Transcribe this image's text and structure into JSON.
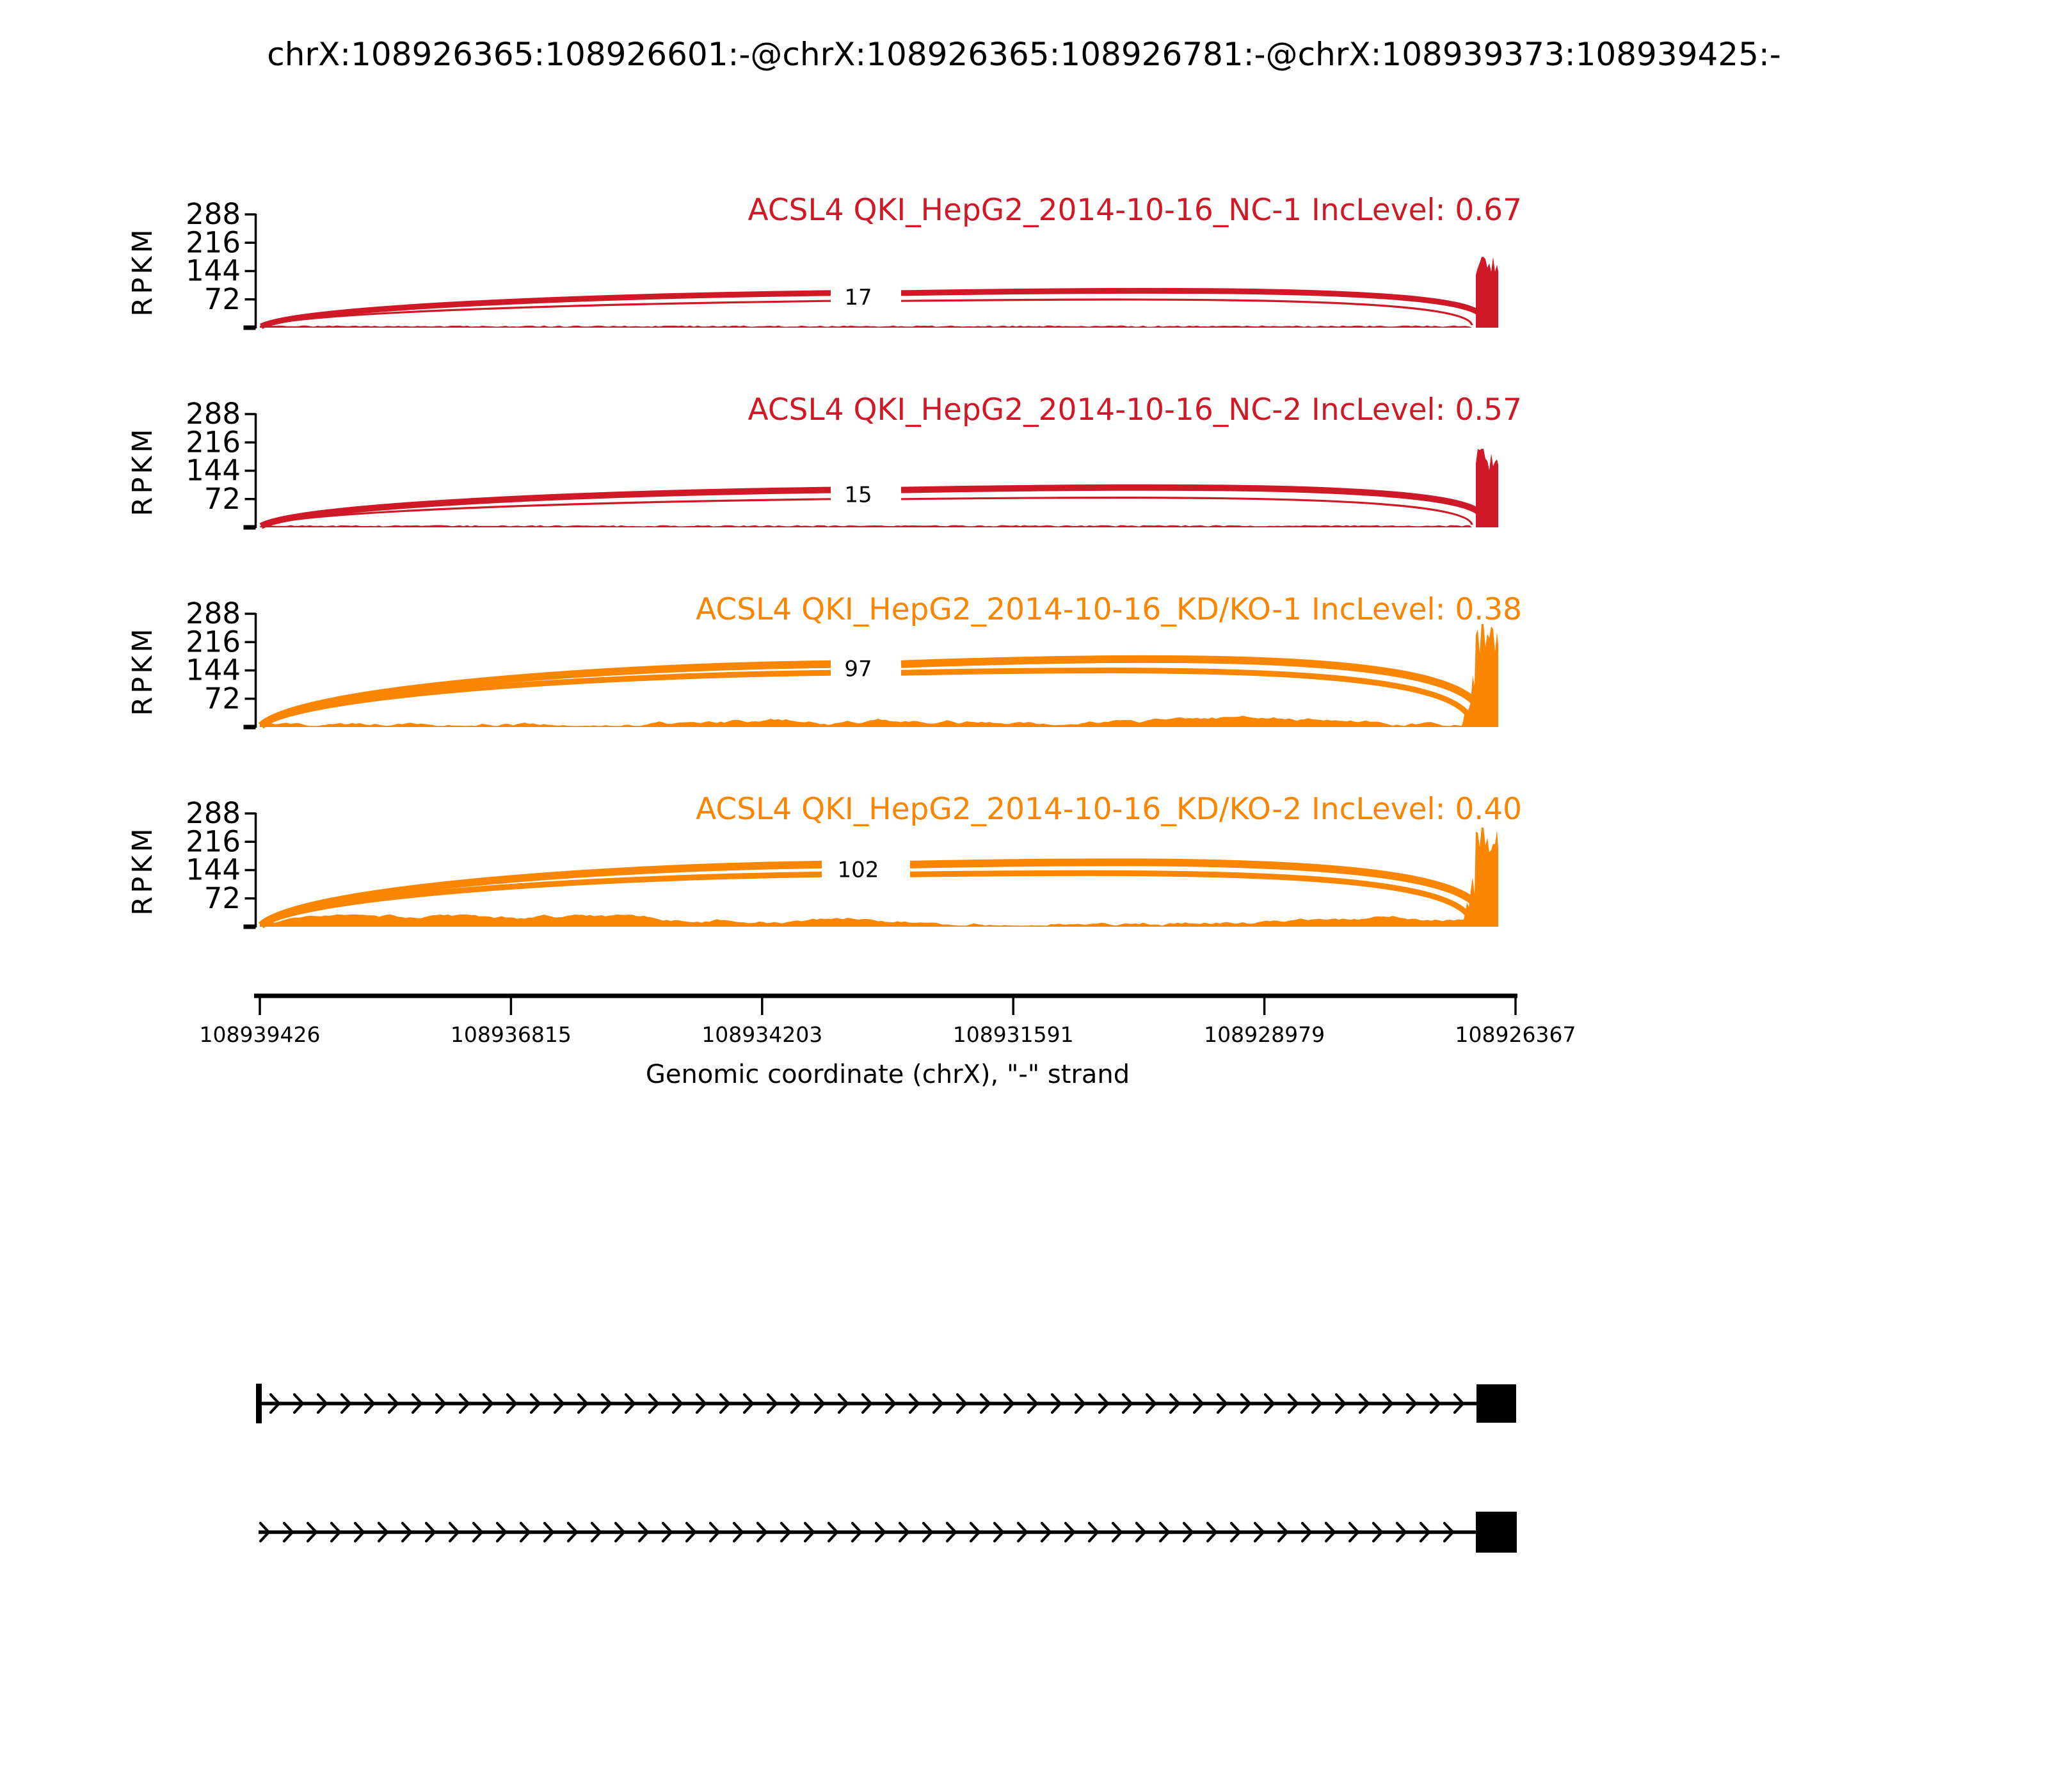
{
  "chart_data": {
    "type": "area",
    "title": "chrX:108926365:108926601:-@chrX:108926365:108926781:-@chrX:108939373:108939425:-",
    "ylabel": "RPKM",
    "yticks": [
      288,
      216,
      144,
      72
    ],
    "ylim": [
      0,
      300
    ],
    "xlabel": "Genomic coordinate (chrX), \"-\" strand",
    "xticks": [
      "108939426",
      "108936815",
      "108934203",
      "108931591",
      "108928979",
      "108926367"
    ],
    "x_descending": true,
    "grid": false,
    "tracks": [
      {
        "name": "NC-1",
        "label": "ACSL4 QKI_HepG2_2014-10-16_NC-1 IncLevel: 0.67",
        "inc_level": 0.67,
        "color": "#D01926",
        "junction_reads": 17,
        "arc_upper": {
          "gap_rpkm": 88,
          "apex_rpkm": 100,
          "width": 9
        },
        "arc_lower": {
          "gap_rpkm": 68,
          "apex_rpkm": 76,
          "width": 3.2
        },
        "peak_rpkm": 180,
        "coverage_base_rpkm": 4,
        "coverage_noise_rpkm": 4
      },
      {
        "name": "NC-2",
        "label": "ACSL4 QKI_HepG2_2014-10-16_NC-2 IncLevel: 0.57",
        "inc_level": 0.57,
        "color": "#D01926",
        "junction_reads": 15,
        "arc_upper": {
          "gap_rpkm": 95,
          "apex_rpkm": 108,
          "width": 10
        },
        "arc_lower": {
          "gap_rpkm": 72,
          "apex_rpkm": 80,
          "width": 3.2
        },
        "peak_rpkm": 200,
        "coverage_base_rpkm": 4,
        "coverage_noise_rpkm": 4
      },
      {
        "name": "KD/KO-1",
        "label": "ACSL4 QKI_HepG2_2014-10-16_KD/KO-1 IncLevel: 0.38",
        "inc_level": 0.38,
        "color": "#F98500",
        "junction_reads": 97,
        "arc_upper": {
          "gap_rpkm": 160,
          "apex_rpkm": 186,
          "width": 12
        },
        "arc_lower": {
          "gap_rpkm": 138,
          "apex_rpkm": 152,
          "width": 9
        },
        "peak_rpkm": 262,
        "coverage_base_rpkm": 10,
        "coverage_noise_rpkm": 24
      },
      {
        "name": "KD/KO-2",
        "label": "ACSL4 QKI_HepG2_2014-10-16_KD/KO-2 IncLevel: 0.40",
        "inc_level": 0.4,
        "color": "#F98500",
        "junction_reads": 102,
        "arc_upper": {
          "gap_rpkm": 158,
          "apex_rpkm": 172,
          "width": 12
        },
        "arc_lower": {
          "gap_rpkm": 133,
          "apex_rpkm": 142,
          "width": 9
        },
        "peak_rpkm": 252,
        "coverage_base_rpkm": 9,
        "coverage_noise_rpkm": 22
      }
    ],
    "structure": {
      "isoforms": [
        {
          "name": "inclusion-isoform",
          "left_exon_bar": true,
          "right_exon": true,
          "strand_arrows": "right"
        },
        {
          "name": "skipping-isoform",
          "left_exon_bar": false,
          "right_exon": true,
          "strand_arrows": "right"
        }
      ]
    }
  }
}
